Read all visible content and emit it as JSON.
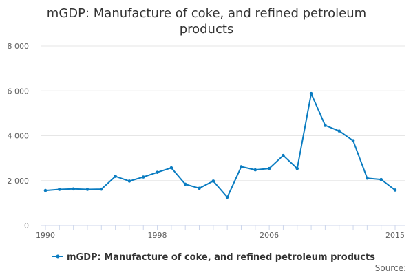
{
  "chart_data": {
    "type": "line",
    "title": "mGDP: Manufacture of coke, and refined petroleum\nproducts",
    "xlabel": "",
    "ylabel": "",
    "xlim": [
      1990,
      2015
    ],
    "ylim": [
      0,
      8000
    ],
    "x_ticks": [
      {
        "value": 1990,
        "label": "1990"
      },
      {
        "value": 1998,
        "label": "1998"
      },
      {
        "value": 2006,
        "label": "2006"
      },
      {
        "value": 2015,
        "label": "2015"
      }
    ],
    "y_ticks": [
      {
        "value": 0,
        "label": "0"
      },
      {
        "value": 2000,
        "label": "2 000"
      },
      {
        "value": 4000,
        "label": "4 000"
      },
      {
        "value": 6000,
        "label": "6 000"
      },
      {
        "value": 8000,
        "label": "8 000"
      }
    ],
    "grid": true,
    "legend_position": "bottom-center",
    "series": [
      {
        "name": "mGDP: Manufacture of coke, and refined petroleum products",
        "color": "#0a7cc1",
        "x": [
          1990,
          1991,
          1992,
          1993,
          1994,
          1995,
          1996,
          1997,
          1998,
          1999,
          2000,
          2001,
          2002,
          2003,
          2004,
          2005,
          2006,
          2007,
          2008,
          2009,
          2010,
          2011,
          2012,
          2013,
          2014,
          2015
        ],
        "values": [
          1560,
          1610,
          1630,
          1610,
          1620,
          2190,
          1980,
          2160,
          2370,
          2570,
          1840,
          1660,
          1980,
          1260,
          2620,
          2480,
          2540,
          3120,
          2540,
          5880,
          4460,
          4210,
          3780,
          2110,
          2050,
          1580
        ]
      }
    ],
    "source_label": "Source:"
  }
}
